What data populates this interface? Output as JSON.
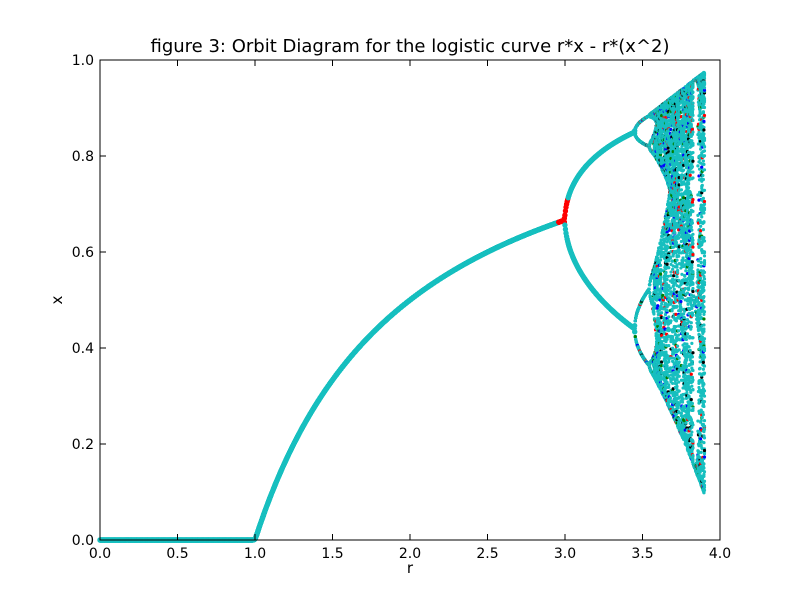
{
  "chart_data": {
    "type": "scatter",
    "title": "figure 3: Orbit Diagram for the logistic curve r*x - r*(x^2)",
    "xlabel": "r",
    "ylabel": "x",
    "xlim": [
      0.0,
      4.0
    ],
    "ylim": [
      0.0,
      1.0
    ],
    "xticks": [
      "0.0",
      "0.5",
      "1.0",
      "1.5",
      "2.0",
      "2.5",
      "3.0",
      "3.5",
      "4.0"
    ],
    "yticks": [
      "0.0",
      "0.2",
      "0.4",
      "0.6",
      "0.8",
      "1.0"
    ],
    "grid": false,
    "r_range": [
      0.0,
      3.9
    ],
    "colors": {
      "main": "#17bfbf",
      "red": "#ff0000",
      "blue": "#0000ff",
      "green": "#008000",
      "black": "#000000"
    },
    "series_colors": [
      "#17bfbf",
      "#ff0000",
      "#0000ff",
      "#008000",
      "#000000"
    ],
    "map": "x -> r*x - r*(x^2)"
  }
}
